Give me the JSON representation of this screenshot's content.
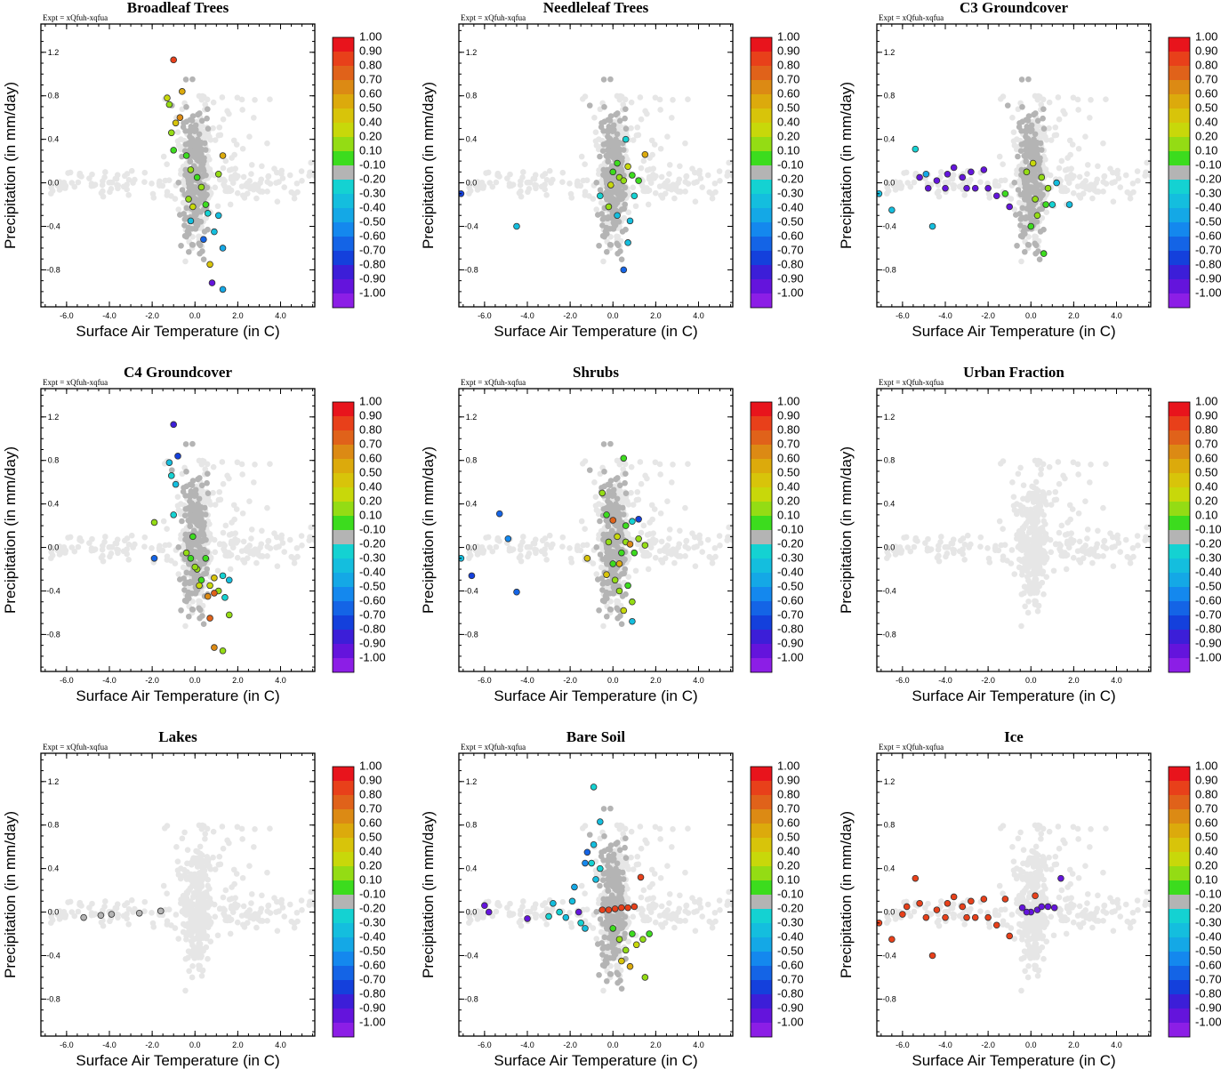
{
  "figure": {
    "expt_label": "Expt = xQfuh-xqfua",
    "xlabel": "Surface Air Temperature (in C)",
    "ylabel": "Precipitation (in mm/day)"
  },
  "colorbar": {
    "labels": [
      "1.00",
      "0.90",
      "0.80",
      "0.70",
      "0.60",
      "0.50",
      "0.40",
      "0.20",
      "0.10",
      "-0.10",
      "-0.20",
      "-0.30",
      "-0.40",
      "-0.50",
      "-0.60",
      "-0.70",
      "-0.80",
      "-0.90",
      "-1.00"
    ],
    "colors": [
      "#e8141c",
      "#e8401a",
      "#e0621a",
      "#dc8a14",
      "#dcaa0c",
      "#d8c40a",
      "#c8d80a",
      "#94dc14",
      "#3cdc1e",
      "#b4b4b4",
      "#14d2d2",
      "#14bede",
      "#14a8e6",
      "#1488ee",
      "#1464e6",
      "#1440dc",
      "#3c1ed8",
      "#6414dc",
      "#8c1ee6"
    ],
    "scatter_colors": {
      "light": "#e6e6e6",
      "grey": "#b4b4b4"
    }
  },
  "chart_data": [
    {
      "type": "scatter",
      "title": "Broadleaf Trees",
      "xlim": [
        -7.2,
        5.6
      ],
      "ylim": [
        -1.14,
        1.46
      ],
      "xticks": [
        "-6.0",
        "-4.0",
        "-2.0",
        "0.0",
        "2.0",
        "4.0"
      ],
      "yticks": [
        "1.2",
        "0.8",
        "0.4",
        "0.0",
        "-0.4",
        "-0.8"
      ],
      "colored_points": [
        [
          -1.0,
          1.13,
          0.9
        ],
        [
          -1.3,
          0.78,
          0.4
        ],
        [
          -0.6,
          0.84,
          0.6
        ],
        [
          -1.2,
          0.72,
          0.3
        ],
        [
          -0.7,
          0.6,
          0.7
        ],
        [
          -0.9,
          0.55,
          0.5
        ],
        [
          -1.1,
          0.46,
          0.2
        ],
        [
          -1.0,
          0.3,
          0.15
        ],
        [
          -0.4,
          0.25,
          0.15
        ],
        [
          -0.2,
          0.12,
          0.2
        ],
        [
          0.1,
          0.05,
          0.15
        ],
        [
          0.3,
          -0.04,
          0.2
        ],
        [
          -0.3,
          -0.15,
          0.3
        ],
        [
          -0.1,
          -0.22,
          0.4
        ],
        [
          0.5,
          -0.2,
          0.15
        ],
        [
          1.3,
          0.25,
          0.6
        ],
        [
          1.1,
          0.08,
          0.3
        ],
        [
          -0.2,
          -0.35,
          -0.3
        ],
        [
          0.6,
          -0.28,
          -0.2
        ],
        [
          0.9,
          -0.45,
          -0.3
        ],
        [
          1.1,
          -0.3,
          -0.3
        ],
        [
          1.3,
          -0.6,
          -0.4
        ],
        [
          0.7,
          -0.75,
          0.5
        ],
        [
          0.8,
          -0.92,
          -0.9
        ],
        [
          1.3,
          -0.98,
          -0.4
        ],
        [
          0.4,
          -0.52,
          -0.6
        ]
      ]
    },
    {
      "type": "scatter",
      "title": "Needleleaf Trees",
      "xlim": [
        -7.2,
        5.6
      ],
      "ylim": [
        -1.14,
        1.46
      ],
      "xticks": [
        "-6.0",
        "-4.0",
        "-2.0",
        "0.0",
        "2.0",
        "4.0"
      ],
      "yticks": [
        "1.2",
        "0.8",
        "0.4",
        "0.0",
        "-0.4",
        "-0.8"
      ],
      "colored_points": [
        [
          -7.1,
          -0.1,
          -0.7
        ],
        [
          -4.5,
          -0.4,
          -0.3
        ],
        [
          0.6,
          0.4,
          -0.2
        ],
        [
          1.5,
          0.26,
          0.6
        ],
        [
          -0.6,
          -0.12,
          -0.2
        ],
        [
          -0.2,
          -0.22,
          0.2
        ],
        [
          0.0,
          0.1,
          0.15
        ],
        [
          0.3,
          0.05,
          0.3
        ],
        [
          0.5,
          0.02,
          0.2
        ],
        [
          0.7,
          0.15,
          0.4
        ],
        [
          0.9,
          0.07,
          0.15
        ],
        [
          1.2,
          0.02,
          0.15
        ],
        [
          -0.1,
          -0.02,
          0.4
        ],
        [
          0.2,
          0.18,
          0.15
        ],
        [
          1.0,
          -0.12,
          -0.2
        ],
        [
          0.8,
          -0.35,
          -0.3
        ],
        [
          0.7,
          -0.55,
          -0.3
        ],
        [
          0.5,
          -0.8,
          -0.6
        ],
        [
          0.2,
          -0.3,
          -0.3
        ]
      ]
    },
    {
      "type": "scatter",
      "title": "C3 Groundcover",
      "xlim": [
        -7.2,
        5.6
      ],
      "ylim": [
        -1.14,
        1.46
      ],
      "xticks": [
        "-6.0",
        "-4.0",
        "-2.0",
        "0.0",
        "2.0",
        "4.0"
      ],
      "yticks": [
        "1.2",
        "0.8",
        "0.4",
        "0.0",
        "-0.4",
        "-0.8"
      ],
      "colored_points": [
        [
          -7.1,
          -0.1,
          -0.3
        ],
        [
          -6.5,
          -0.25,
          -0.3
        ],
        [
          -5.4,
          0.31,
          -0.2
        ],
        [
          -4.6,
          -0.4,
          -0.3
        ],
        [
          -4.9,
          0.08,
          -0.4
        ],
        [
          -5.2,
          0.05,
          -0.9
        ],
        [
          -4.4,
          0.02,
          -0.9
        ],
        [
          -3.9,
          0.08,
          -0.9
        ],
        [
          -3.6,
          0.14,
          -0.9
        ],
        [
          -3.2,
          0.05,
          -0.9
        ],
        [
          -2.8,
          0.1,
          -0.9
        ],
        [
          -2.6,
          -0.05,
          -0.9
        ],
        [
          -2.2,
          0.12,
          -0.9
        ],
        [
          -2.0,
          -0.05,
          -0.9
        ],
        [
          -1.6,
          -0.12,
          -0.9
        ],
        [
          -1.0,
          -0.22,
          -0.9
        ],
        [
          -4.0,
          -0.05,
          -0.9
        ],
        [
          -3.0,
          -0.05,
          -0.9
        ],
        [
          -4.8,
          -0.05,
          -0.9
        ],
        [
          -1.2,
          -0.1,
          0.15
        ],
        [
          -0.2,
          0.1,
          0.2
        ],
        [
          0.2,
          -0.15,
          0.3
        ],
        [
          0.5,
          0.05,
          0.2
        ],
        [
          0.7,
          -0.2,
          0.15
        ],
        [
          0.0,
          -0.4,
          0.15
        ],
        [
          0.3,
          -0.3,
          0.3
        ],
        [
          0.8,
          -0.05,
          0.2
        ],
        [
          1.0,
          -0.2,
          -0.2
        ],
        [
          1.2,
          0.0,
          -0.3
        ],
        [
          0.6,
          -0.65,
          0.15
        ],
        [
          0.1,
          0.18,
          0.4
        ],
        [
          1.8,
          -0.2,
          -0.3
        ]
      ]
    },
    {
      "type": "scatter",
      "title": "C4 Groundcover",
      "xlim": [
        -7.2,
        5.6
      ],
      "ylim": [
        -1.14,
        1.46
      ],
      "xticks": [
        "-6.0",
        "-4.0",
        "-2.0",
        "0.0",
        "2.0",
        "4.0"
      ],
      "yticks": [
        "1.2",
        "0.8",
        "0.4",
        "0.0",
        "-0.4",
        "-0.8"
      ],
      "colored_points": [
        [
          -1.0,
          1.13,
          -0.8
        ],
        [
          -0.8,
          0.84,
          -0.7
        ],
        [
          -1.2,
          0.78,
          -0.3
        ],
        [
          -1.1,
          0.66,
          -0.2
        ],
        [
          -0.9,
          0.58,
          -0.3
        ],
        [
          -1.9,
          0.23,
          0.2
        ],
        [
          -1.9,
          -0.1,
          -0.6
        ],
        [
          -1.0,
          0.3,
          -0.2
        ],
        [
          -0.4,
          -0.05,
          0.2
        ],
        [
          -0.2,
          -0.1,
          0.15
        ],
        [
          0.1,
          -0.2,
          0.3
        ],
        [
          0.3,
          -0.3,
          0.15
        ],
        [
          0.5,
          -0.1,
          0.15
        ],
        [
          0.7,
          -0.35,
          0.4
        ],
        [
          0.9,
          -0.28,
          0.5
        ],
        [
          1.1,
          -0.4,
          0.3
        ],
        [
          1.3,
          -0.26,
          -0.2
        ],
        [
          1.6,
          -0.3,
          -0.3
        ],
        [
          1.4,
          -0.46,
          -0.2
        ],
        [
          1.6,
          -0.62,
          0.3
        ],
        [
          0.6,
          -0.45,
          0.7
        ],
        [
          0.9,
          -0.42,
          0.8
        ],
        [
          0.7,
          -0.65,
          0.8
        ],
        [
          0.9,
          -0.92,
          0.7
        ],
        [
          1.3,
          -0.95,
          0.3
        ],
        [
          0.0,
          -0.18,
          0.2
        ],
        [
          -0.1,
          0.1,
          0.15
        ],
        [
          0.2,
          -0.35,
          0.4
        ]
      ]
    },
    {
      "type": "scatter",
      "title": "Shrubs",
      "xlim": [
        -7.2,
        5.6
      ],
      "ylim": [
        -1.14,
        1.46
      ],
      "xticks": [
        "-6.0",
        "-4.0",
        "-2.0",
        "0.0",
        "2.0",
        "4.0"
      ],
      "yticks": [
        "1.2",
        "0.8",
        "0.4",
        "0.0",
        "-0.4",
        "-0.8"
      ],
      "colored_points": [
        [
          -5.3,
          0.31,
          -0.6
        ],
        [
          -4.9,
          0.08,
          -0.5
        ],
        [
          -4.5,
          -0.41,
          -0.6
        ],
        [
          -6.6,
          -0.26,
          -0.7
        ],
        [
          -7.1,
          -0.1,
          -0.3
        ],
        [
          -1.2,
          -0.1,
          0.5
        ],
        [
          0.5,
          0.82,
          0.15
        ],
        [
          -0.5,
          0.5,
          0.3
        ],
        [
          -0.3,
          0.3,
          0.15
        ],
        [
          0.0,
          0.25,
          0.8
        ],
        [
          0.6,
          0.2,
          0.15
        ],
        [
          0.9,
          0.24,
          -0.2
        ],
        [
          1.2,
          0.26,
          -0.7
        ],
        [
          -0.2,
          0.05,
          0.3
        ],
        [
          0.2,
          0.1,
          0.4
        ],
        [
          0.4,
          -0.05,
          0.15
        ],
        [
          0.6,
          0.05,
          0.2
        ],
        [
          0.8,
          0.03,
          0.7
        ],
        [
          1.0,
          -0.05,
          0.15
        ],
        [
          1.2,
          0.08,
          0.2
        ],
        [
          1.5,
          0.02,
          0.3
        ],
        [
          -0.3,
          -0.25,
          0.5
        ],
        [
          0.1,
          -0.3,
          0.2
        ],
        [
          0.3,
          -0.4,
          0.3
        ],
        [
          0.7,
          -0.35,
          0.15
        ],
        [
          0.9,
          -0.5,
          0.2
        ],
        [
          0.5,
          -0.58,
          0.4
        ],
        [
          0.9,
          -0.68,
          -0.3
        ],
        [
          0.3,
          -0.15,
          0.6
        ],
        [
          0.0,
          -0.15,
          0.15
        ]
      ]
    },
    {
      "type": "scatter",
      "title": "Urban Fraction",
      "xlim": [
        -7.2,
        5.6
      ],
      "ylim": [
        -1.14,
        1.46
      ],
      "xticks": [
        "-6.0",
        "-4.0",
        "-2.0",
        "0.0",
        "2.0",
        "4.0"
      ],
      "yticks": [
        "1.2",
        "0.8",
        "0.4",
        "0.0",
        "-0.4",
        "-0.8"
      ],
      "colored_points": []
    },
    {
      "type": "scatter",
      "title": "Lakes",
      "xlim": [
        -7.2,
        5.6
      ],
      "ylim": [
        -1.14,
        1.46
      ],
      "xticks": [
        "-6.0",
        "-4.0",
        "-2.0",
        "0.0",
        "2.0",
        "4.0"
      ],
      "yticks": [
        "1.2",
        "0.8",
        "0.4",
        "0.0",
        "-0.4",
        "-0.8"
      ],
      "colored_points": [
        [
          -5.2,
          -0.05,
          0.0
        ],
        [
          -4.4,
          -0.03,
          0.0
        ],
        [
          -3.9,
          -0.02,
          0.0
        ],
        [
          -2.6,
          -0.01,
          0.0
        ],
        [
          -1.6,
          0.01,
          0.0
        ]
      ]
    },
    {
      "type": "scatter",
      "title": "Bare Soil",
      "xlim": [
        -7.2,
        5.6
      ],
      "ylim": [
        -1.14,
        1.46
      ],
      "xticks": [
        "-6.0",
        "-4.0",
        "-2.0",
        "0.0",
        "2.0",
        "4.0"
      ],
      "yticks": [
        "1.2",
        "0.8",
        "0.4",
        "0.0",
        "-0.4",
        "-0.8"
      ],
      "colored_points": [
        [
          -6.0,
          0.06,
          -0.9
        ],
        [
          -5.8,
          0.0,
          -0.9
        ],
        [
          -4.0,
          -0.06,
          -0.9
        ],
        [
          -3.0,
          -0.04,
          -0.2
        ],
        [
          -2.8,
          0.08,
          -0.3
        ],
        [
          -2.5,
          0.0,
          -0.2
        ],
        [
          -2.2,
          -0.05,
          -0.3
        ],
        [
          -1.9,
          0.1,
          -0.3
        ],
        [
          -1.6,
          0.0,
          -0.9
        ],
        [
          -1.5,
          -0.1,
          -0.2
        ],
        [
          -1.3,
          -0.15,
          -0.3
        ],
        [
          -1.8,
          0.23,
          -0.4
        ],
        [
          -1.3,
          0.45,
          -0.5
        ],
        [
          -1.2,
          0.55,
          -0.6
        ],
        [
          -0.9,
          0.62,
          -0.3
        ],
        [
          -1.0,
          0.45,
          -0.2
        ],
        [
          -0.6,
          0.4,
          -0.2
        ],
        [
          -0.8,
          0.3,
          -0.3
        ],
        [
          -0.9,
          1.15,
          -0.2
        ],
        [
          -0.6,
          0.83,
          -0.3
        ],
        [
          -0.5,
          0.02,
          0.95
        ],
        [
          -0.2,
          0.02,
          0.95
        ],
        [
          0.1,
          0.03,
          0.95
        ],
        [
          0.4,
          0.04,
          0.95
        ],
        [
          0.7,
          0.04,
          0.95
        ],
        [
          1.0,
          0.05,
          0.95
        ],
        [
          1.3,
          0.32,
          0.95
        ],
        [
          0.0,
          -0.15,
          0.15
        ],
        [
          0.3,
          -0.25,
          0.3
        ],
        [
          0.6,
          -0.35,
          0.2
        ],
        [
          0.9,
          -0.2,
          0.15
        ],
        [
          1.1,
          -0.3,
          0.4
        ],
        [
          1.4,
          -0.25,
          0.2
        ],
        [
          1.7,
          -0.2,
          0.15
        ],
        [
          0.4,
          -0.45,
          0.5
        ],
        [
          0.8,
          -0.5,
          0.6
        ],
        [
          1.5,
          -0.6,
          0.2
        ]
      ]
    },
    {
      "type": "scatter",
      "title": "Ice",
      "xlim": [
        -7.2,
        5.6
      ],
      "ylim": [
        -1.14,
        1.46
      ],
      "xticks": [
        "-6.0",
        "-4.0",
        "-2.0",
        "0.0",
        "2.0",
        "4.0"
      ],
      "yticks": [
        "1.2",
        "0.8",
        "0.4",
        "0.0",
        "-0.4",
        "-0.8"
      ],
      "colored_points": [
        [
          -7.1,
          -0.1,
          0.95
        ],
        [
          -6.5,
          -0.25,
          0.95
        ],
        [
          -5.4,
          0.31,
          0.95
        ],
        [
          -4.6,
          -0.4,
          0.95
        ],
        [
          -5.8,
          0.05,
          0.95
        ],
        [
          -5.2,
          0.08,
          0.95
        ],
        [
          -4.9,
          -0.05,
          0.95
        ],
        [
          -4.4,
          0.02,
          0.95
        ],
        [
          -3.9,
          0.08,
          0.95
        ],
        [
          -3.6,
          0.14,
          0.95
        ],
        [
          -3.2,
          0.05,
          0.95
        ],
        [
          -2.8,
          0.1,
          0.95
        ],
        [
          -2.6,
          -0.05,
          0.95
        ],
        [
          -2.2,
          0.12,
          0.95
        ],
        [
          -2.0,
          -0.05,
          0.95
        ],
        [
          -1.6,
          -0.12,
          0.95
        ],
        [
          -1.0,
          -0.22,
          0.95
        ],
        [
          -4.0,
          -0.05,
          0.95
        ],
        [
          -3.0,
          -0.05,
          0.95
        ],
        [
          -6.0,
          -0.02,
          0.95
        ],
        [
          -1.2,
          0.12,
          0.95
        ],
        [
          0.2,
          0.15,
          0.95
        ],
        [
          0.0,
          0.0,
          -0.9
        ],
        [
          0.3,
          0.02,
          -0.9
        ],
        [
          0.5,
          0.05,
          -0.9
        ],
        [
          0.8,
          0.05,
          -0.9
        ],
        [
          1.1,
          0.04,
          -0.9
        ],
        [
          1.4,
          0.31,
          -0.9
        ],
        [
          -0.4,
          0.04,
          -0.9
        ],
        [
          -0.2,
          0.0,
          -0.9
        ]
      ]
    }
  ]
}
